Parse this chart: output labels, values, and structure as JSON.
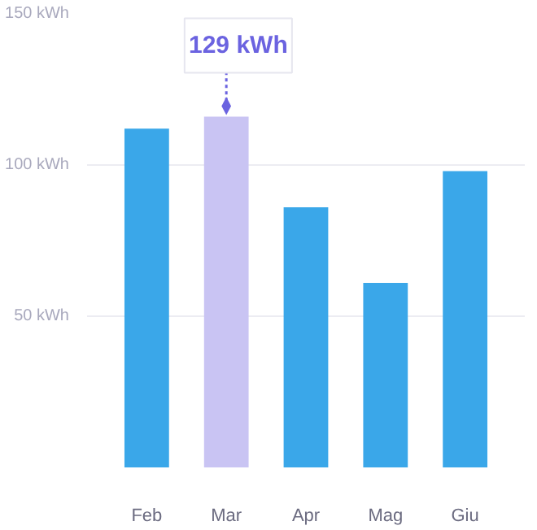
{
  "chart_data": {
    "type": "bar",
    "categories": [
      "Feb",
      "Mar",
      "Apr",
      "Mag",
      "Giu"
    ],
    "values": [
      112,
      116,
      86,
      61,
      98
    ],
    "colors": [
      "#3aa7e9",
      "#c9c4f3",
      "#3aa7e9",
      "#3aa7e9",
      "#3aa7e9"
    ],
    "ylim": [
      0,
      150
    ],
    "yticks": [
      {
        "value": 50,
        "label": "50 kWh"
      },
      {
        "value": 100,
        "label": "100 kWh"
      },
      {
        "value": 150,
        "label": "150 kWh"
      }
    ],
    "grid": "y",
    "annotations": [
      {
        "text": "129 kWh",
        "x": "Mar",
        "y": 116
      }
    ]
  }
}
